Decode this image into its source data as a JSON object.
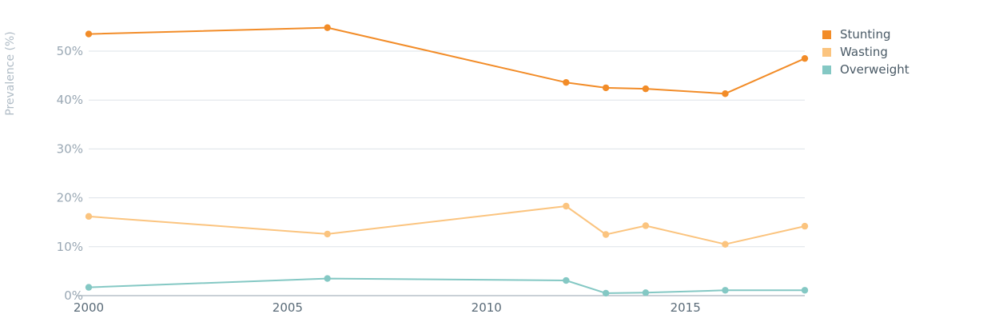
{
  "chart_data": {
    "type": "line",
    "ylabel": "Prevalence (%)",
    "xlabel": "",
    "xlim": [
      2000,
      2018
    ],
    "ylim": [
      0,
      55
    ],
    "x_ticks": [
      2000,
      2005,
      2010,
      2015
    ],
    "y_ticks": [
      0,
      10,
      20,
      30,
      40,
      50
    ],
    "y_tick_labels": [
      "0%",
      "10%",
      "20%",
      "30%",
      "40%",
      "50%"
    ],
    "grid": true,
    "legend_position": "right",
    "series": [
      {
        "name": "Stunting",
        "color": "#f28c28",
        "points": [
          [
            2000,
            53.5
          ],
          [
            2006,
            54.8
          ],
          [
            2012,
            43.6
          ],
          [
            2013,
            42.5
          ],
          [
            2014,
            42.3
          ],
          [
            2016,
            41.3
          ],
          [
            2018,
            48.5
          ]
        ]
      },
      {
        "name": "Wasting",
        "color": "#fbc47f",
        "points": [
          [
            2000,
            16.2
          ],
          [
            2006,
            12.6
          ],
          [
            2012,
            18.3
          ],
          [
            2013,
            12.5
          ],
          [
            2014,
            14.3
          ],
          [
            2016,
            10.5
          ],
          [
            2018,
            14.2
          ]
        ]
      },
      {
        "name": "Overweight",
        "color": "#84c8c4",
        "points": [
          [
            2000,
            1.7
          ],
          [
            2006,
            3.5
          ],
          [
            2012,
            3.1
          ],
          [
            2013,
            0.5
          ],
          [
            2014,
            0.6
          ],
          [
            2016,
            1.1
          ],
          [
            2018,
            1.1
          ]
        ]
      }
    ]
  }
}
